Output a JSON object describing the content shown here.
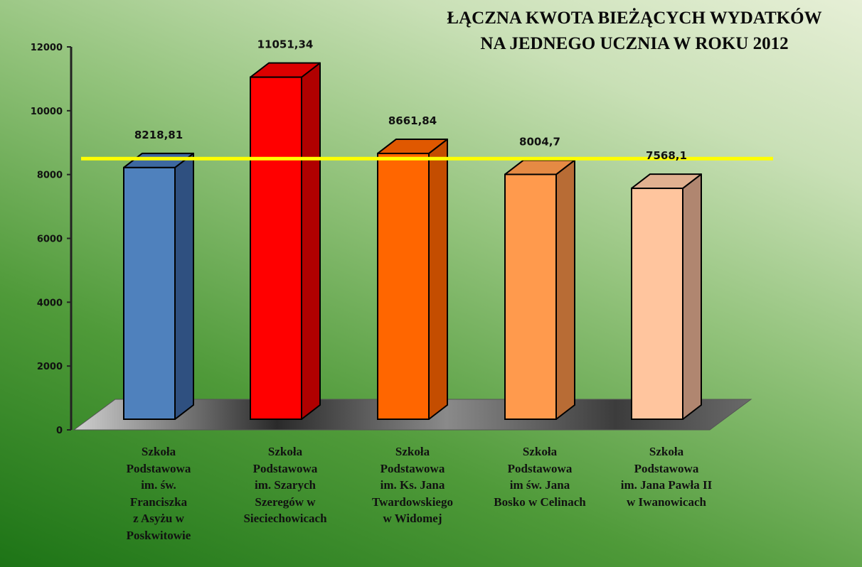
{
  "chart_data": {
    "type": "bar",
    "title_lines": [
      "ŁĄCZNA KWOTA BIEŻĄCYCH WYDATKÓW",
      "NA  JEDNEGO  UCZNIA W ROKU 2012"
    ],
    "categories": [
      "Szkoła\nPodstawowa\nim. św.\nFranciszka\nz Asyżu w\nPoskwitowie",
      "Szkoła\nPodstawowa\nim. Szarych\nSzeregów w\nSieciechowicach",
      "Szkoła\nPodstawowa\nim. Ks. Jana\nTwardowskiego\nw Widomej",
      "Szkoła\nPodstawowa\nim św. Jana\nBosko w Celinach",
      "Szkoła\nPodstawowa\nim. Jana Pawła II\nw Iwanowicach"
    ],
    "values": [
      8218.81,
      11051.34,
      8661.84,
      8004.7,
      7568.1
    ],
    "value_labels": [
      "8218,81",
      "11051,34",
      "8661,84",
      "8004,7",
      "7568,1"
    ],
    "ylim": [
      0,
      12000
    ],
    "yticks": [
      0,
      2000,
      4000,
      6000,
      8000,
      10000,
      12000
    ],
    "reference_line": 8500,
    "grid": false,
    "legend": "none",
    "colors": {
      "bars_front": [
        "#4f81bd",
        "#ff0000",
        "#ff6600",
        "#ff9a4d",
        "#ffc59e"
      ],
      "bars_side": [
        "#2f5080",
        "#b00000",
        "#c44d00",
        "#b86c35",
        "#b08670"
      ],
      "bars_top": [
        "#3d68a0",
        "#dc0000",
        "#e05800",
        "#e58a44",
        "#e0b090"
      ],
      "reference_line": "#ffff00"
    }
  }
}
